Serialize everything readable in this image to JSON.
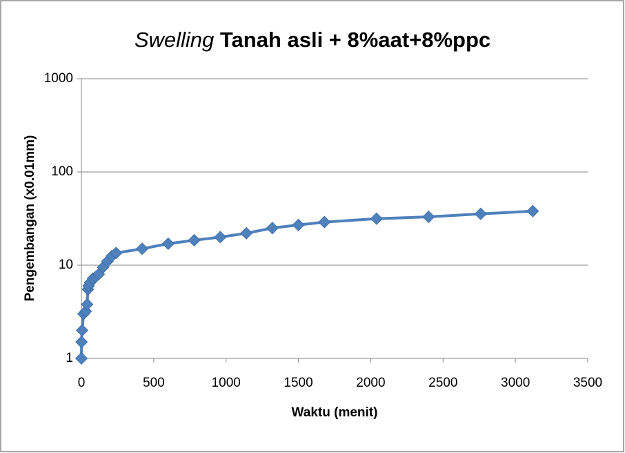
{
  "chart_data": {
    "type": "line",
    "title_parts": [
      "Swelling",
      "Tanah asli + 8%aat+8%ppc"
    ],
    "x_label": "Waktu (menit)",
    "y_label": "Pengembangan (x0.01mm)",
    "x": [
      0,
      1,
      5,
      15,
      30,
      40,
      45,
      50,
      60,
      80,
      100,
      120,
      150,
      180,
      210,
      240,
      420,
      600,
      780,
      960,
      1140,
      1320,
      1500,
      1680,
      2040,
      2400,
      2760,
      3120
    ],
    "series": [
      {
        "name": "Swelling",
        "color": "#4f81bd",
        "values": [
          1,
          1.5,
          2,
          3,
          3.2,
          3.8,
          5.5,
          6,
          6.5,
          7.2,
          7.5,
          8,
          9.5,
          11,
          12.5,
          13.5,
          15,
          17,
          18.5,
          20,
          22,
          25,
          27,
          29,
          31.5,
          33,
          35.5,
          38
        ]
      }
    ],
    "xlim": [
      0,
      3500
    ],
    "xticks": [
      0,
      500,
      1000,
      1500,
      2000,
      2500,
      3000,
      3500
    ],
    "ylim": [
      1,
      1000
    ],
    "yticks": [
      1,
      10,
      100,
      1000
    ],
    "y_log": true,
    "grid": true
  }
}
